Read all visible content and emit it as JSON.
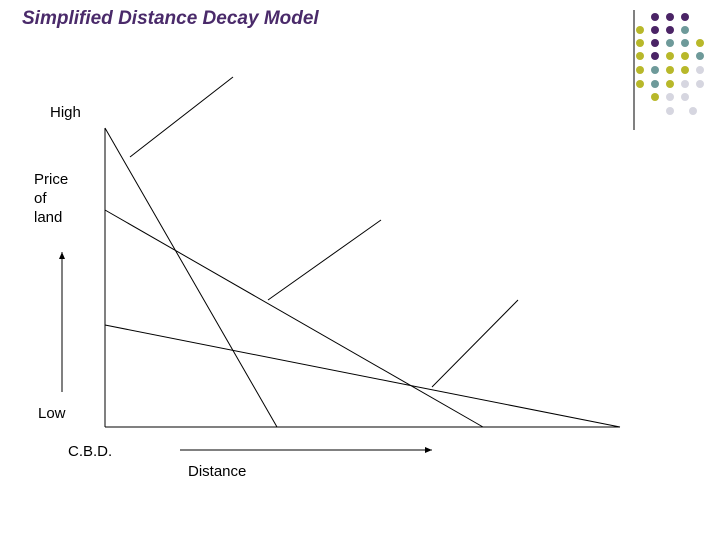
{
  "header": {
    "title": "Simplified Distance Decay Model"
  },
  "axes": {
    "y_high": "High",
    "y_label": [
      "Price",
      "of",
      "land"
    ],
    "y_low": "Low",
    "origin": "C.B.D.",
    "x_label": "Distance"
  }
}
